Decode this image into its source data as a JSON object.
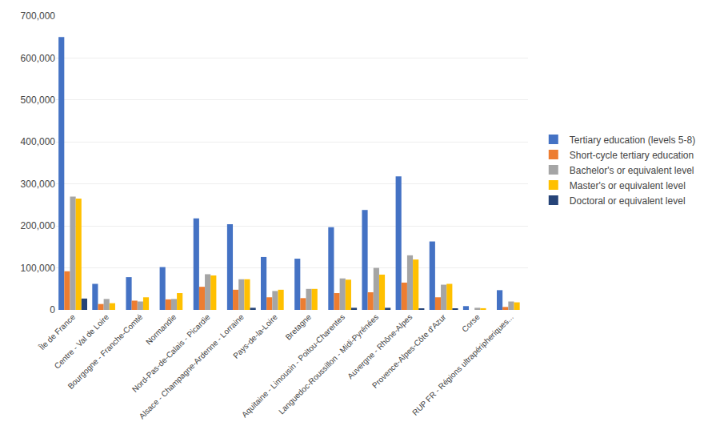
{
  "chart_data": {
    "type": "bar",
    "categories": [
      "Île de France",
      "Centre - Val de Loire",
      "Bourgogne - Franche-Comté",
      "Normandie",
      "Nord-Pas-de-Calais - Picardie",
      "Alsace - Champagne-Ardenne - Lorraine",
      "Pays-de-la-Loire",
      "Bretagne",
      "Aquitaine - Limousin - Poitou-Charentes",
      "Languedoc-Roussillon - Midi-Pyrénées",
      "Auvergne - Rhône-Alpes",
      "Provence-Alpes-Côte d'Azur",
      "Corse",
      "RUP FR - Régions ultrapéripheriques..."
    ],
    "series": [
      {
        "name": "Tertiary education (levels 5-8)",
        "color": "#4472C4",
        "values": [
          650000,
          62000,
          78000,
          102000,
          218000,
          204000,
          126000,
          122000,
          197000,
          238000,
          318000,
          163000,
          9000,
          47000
        ]
      },
      {
        "name": "Short-cycle tertiary education",
        "color": "#ED7D31",
        "values": [
          92000,
          14000,
          22000,
          25000,
          55000,
          48000,
          30000,
          28000,
          40000,
          42000,
          65000,
          30000,
          0,
          7000
        ]
      },
      {
        "name": "Bachelor's or equivalent level",
        "color": "#A5A5A5",
        "values": [
          270000,
          26000,
          20000,
          26000,
          85000,
          73000,
          45000,
          50000,
          75000,
          100000,
          130000,
          60000,
          5000,
          20000
        ]
      },
      {
        "name": "Master's or equivalent level",
        "color": "#FFC000",
        "values": [
          265000,
          16000,
          30000,
          40000,
          82000,
          73000,
          48000,
          50000,
          72000,
          84000,
          120000,
          62000,
          4000,
          18000
        ]
      },
      {
        "name": "Doctoral or equivalent level",
        "color": "#264478",
        "values": [
          27000,
          0,
          0,
          0,
          0,
          5000,
          0,
          0,
          5000,
          5000,
          3000,
          2000,
          0,
          0
        ]
      }
    ],
    "ylim": [
      0,
      700000
    ],
    "yticks": [
      0,
      {
        "value": 100000,
        "label": "100,000"
      },
      {
        "value": 200000,
        "label": "200,000"
      },
      {
        "value": 300000,
        "label": "300,000"
      },
      {
        "value": 400000,
        "label": "400,000"
      },
      {
        "value": 500000,
        "label": "500,000"
      },
      {
        "value": 600000,
        "label": "600,000"
      },
      {
        "value": 700000,
        "label": "700,000"
      }
    ],
    "grid": true,
    "legend": "right"
  }
}
